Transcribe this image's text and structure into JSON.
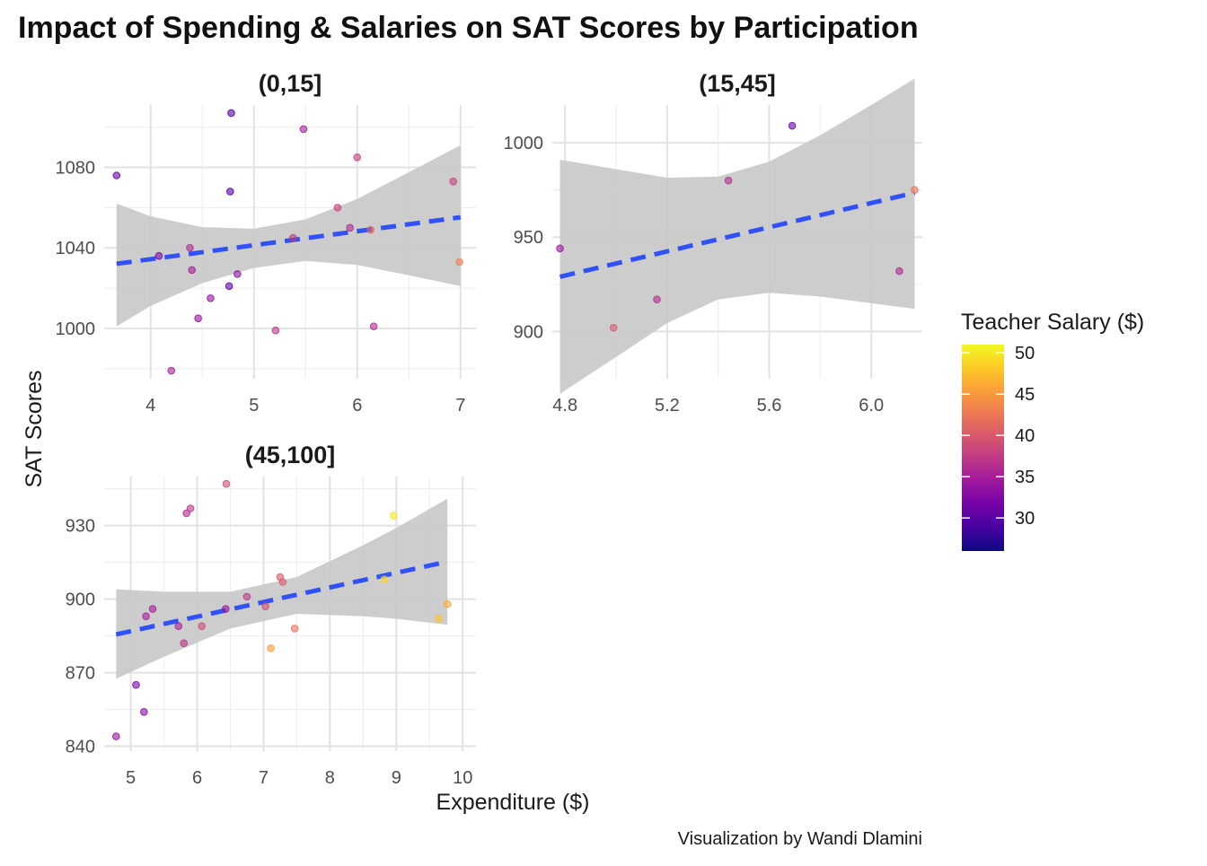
{
  "chart_data": {
    "type": "scatter",
    "title": "Impact of Spending & Salaries on SAT Scores by Participation",
    "xlabel": "Expenditure ($)",
    "ylabel": "SAT Scores",
    "caption": "Visualization by Wandi Dlamini",
    "legend": {
      "title": "Teacher Salary ($)",
      "position": "right",
      "ticks": [
        "30",
        "35",
        "40",
        "45",
        "50"
      ],
      "tick_values": [
        30,
        35,
        40,
        45,
        50
      ],
      "range": [
        26,
        51
      ],
      "colors": [
        "#0d0887",
        "#46039f",
        "#7201a8",
        "#9c179e",
        "#bd3786",
        "#d8576b",
        "#ed7953",
        "#fb9f3a",
        "#fdca26",
        "#f0f921"
      ]
    },
    "trend_color": "#3050f8",
    "band_color": "#c8c8c8",
    "grid": true,
    "panels": [
      {
        "label": "(0,15]",
        "xlim": [
          3.55,
          7.15
        ],
        "ylim": [
          975,
          1111
        ],
        "xticks": [
          4,
          5,
          6,
          7
        ],
        "xtick_labels": [
          "4",
          "5",
          "6",
          "7"
        ],
        "yticks": [
          1000,
          1040,
          1080
        ],
        "ytick_labels": [
          "1000",
          "1040",
          "1080"
        ],
        "trend": [
          [
            3.67,
            1032.1
          ],
          [
            7.0,
            1055.2
          ]
        ],
        "band_upper": [
          [
            3.67,
            1062
          ],
          [
            4.0,
            1055.7
          ],
          [
            4.5,
            1050.3
          ],
          [
            5.0,
            1049.5
          ],
          [
            5.5,
            1054.2
          ],
          [
            6.0,
            1064.3
          ],
          [
            6.5,
            1077.6
          ],
          [
            7.0,
            1091
          ]
        ],
        "band_lower": [
          [
            3.67,
            1001
          ],
          [
            4.0,
            1011.2
          ],
          [
            4.5,
            1022.5
          ],
          [
            5.0,
            1030
          ],
          [
            5.5,
            1033.5
          ],
          [
            6.0,
            1031.5
          ],
          [
            6.5,
            1026.4
          ],
          [
            7.0,
            1021
          ]
        ],
        "points": [
          {
            "x": 3.67,
            "y": 1076,
            "salary": 31
          },
          {
            "x": 4.08,
            "y": 1036,
            "salary": 32
          },
          {
            "x": 4.2,
            "y": 979,
            "salary": 35
          },
          {
            "x": 4.38,
            "y": 1040,
            "salary": 36
          },
          {
            "x": 4.4,
            "y": 1029,
            "salary": 35
          },
          {
            "x": 4.46,
            "y": 1005,
            "salary": 34
          },
          {
            "x": 4.58,
            "y": 1015,
            "salary": 34
          },
          {
            "x": 4.76,
            "y": 1021,
            "salary": 30
          },
          {
            "x": 4.77,
            "y": 1068,
            "salary": 30
          },
          {
            "x": 4.78,
            "y": 1107,
            "salary": 30
          },
          {
            "x": 4.84,
            "y": 1027,
            "salary": 33
          },
          {
            "x": 5.21,
            "y": 999,
            "salary": 37
          },
          {
            "x": 5.38,
            "y": 1045,
            "salary": 37
          },
          {
            "x": 5.48,
            "y": 1099,
            "salary": 35
          },
          {
            "x": 5.81,
            "y": 1060,
            "salary": 38
          },
          {
            "x": 5.93,
            "y": 1050,
            "salary": 36
          },
          {
            "x": 6.0,
            "y": 1085,
            "salary": 38
          },
          {
            "x": 6.13,
            "y": 1049,
            "salary": 41
          },
          {
            "x": 6.16,
            "y": 1001,
            "salary": 36
          },
          {
            "x": 6.93,
            "y": 1073,
            "salary": 38
          },
          {
            "x": 6.99,
            "y": 1033,
            "salary": 43
          }
        ]
      },
      {
        "label": "(15,45]",
        "xlim": [
          4.75,
          6.2
        ],
        "ylim": [
          875,
          1020
        ],
        "xticks": [
          4.8,
          5.2,
          5.6,
          6.0
        ],
        "xtick_labels": [
          "4.8",
          "5.2",
          "5.6",
          "6.0"
        ],
        "yticks": [
          900,
          950,
          1000
        ],
        "ytick_labels": [
          "900",
          "950",
          "1000"
        ],
        "trend": [
          [
            4.78,
            929
          ],
          [
            6.17,
            973.5
          ]
        ],
        "band_upper": [
          [
            4.78,
            991
          ],
          [
            5.0,
            986
          ],
          [
            5.2,
            981.5
          ],
          [
            5.4,
            982
          ],
          [
            5.6,
            990
          ],
          [
            5.8,
            1004
          ],
          [
            6.0,
            1020
          ],
          [
            6.17,
            1034
          ]
        ],
        "band_lower": [
          [
            4.78,
            867
          ],
          [
            5.0,
            886.5
          ],
          [
            5.2,
            904.5
          ],
          [
            5.4,
            917
          ],
          [
            5.6,
            920.5
          ],
          [
            5.8,
            918.5
          ],
          [
            6.0,
            915
          ],
          [
            6.17,
            912
          ]
        ],
        "points": [
          {
            "x": 4.78,
            "y": 944,
            "salary": 34
          },
          {
            "x": 4.99,
            "y": 902,
            "salary": 40
          },
          {
            "x": 5.16,
            "y": 917,
            "salary": 36
          },
          {
            "x": 5.44,
            "y": 980,
            "salary": 36
          },
          {
            "x": 5.69,
            "y": 1009,
            "salary": 31
          },
          {
            "x": 6.11,
            "y": 932,
            "salary": 36
          },
          {
            "x": 6.17,
            "y": 975,
            "salary": 42
          }
        ]
      },
      {
        "label": "(45,100]",
        "xlim": [
          4.6,
          10.2
        ],
        "ylim": [
          838,
          950
        ],
        "xticks": [
          5,
          6,
          7,
          8,
          9,
          10
        ],
        "xtick_labels": [
          "5",
          "6",
          "7",
          "8",
          "9",
          "10"
        ],
        "yticks": [
          840,
          870,
          900,
          930
        ],
        "ytick_labels": [
          "840",
          "870",
          "900",
          "930"
        ],
        "trend": [
          [
            4.78,
            885.6
          ],
          [
            9.77,
            915.3
          ]
        ],
        "band_upper": [
          [
            4.78,
            904
          ],
          [
            5.5,
            903
          ],
          [
            6.5,
            903
          ],
          [
            7.5,
            909
          ],
          [
            8.5,
            922
          ],
          [
            9.0,
            929
          ],
          [
            9.77,
            941
          ]
        ],
        "band_lower": [
          [
            4.78,
            867.5
          ],
          [
            5.5,
            876.5
          ],
          [
            6.5,
            888
          ],
          [
            7.5,
            894
          ],
          [
            8.5,
            893
          ],
          [
            9.0,
            892
          ],
          [
            9.77,
            889.5
          ]
        ],
        "points": [
          {
            "x": 4.78,
            "y": 844,
            "salary": 34
          },
          {
            "x": 5.08,
            "y": 865,
            "salary": 32
          },
          {
            "x": 5.2,
            "y": 854,
            "salary": 33
          },
          {
            "x": 5.23,
            "y": 893,
            "salary": 35
          },
          {
            "x": 5.33,
            "y": 896,
            "salary": 35
          },
          {
            "x": 5.72,
            "y": 889,
            "salary": 35
          },
          {
            "x": 5.8,
            "y": 882,
            "salary": 37
          },
          {
            "x": 5.84,
            "y": 935,
            "salary": 36
          },
          {
            "x": 5.9,
            "y": 937,
            "salary": 37
          },
          {
            "x": 6.07,
            "y": 889,
            "salary": 39
          },
          {
            "x": 6.43,
            "y": 896,
            "salary": 34
          },
          {
            "x": 6.44,
            "y": 947,
            "salary": 39
          },
          {
            "x": 6.75,
            "y": 901,
            "salary": 37
          },
          {
            "x": 7.03,
            "y": 897,
            "salary": 39
          },
          {
            "x": 7.11,
            "y": 880,
            "salary": 45
          },
          {
            "x": 7.25,
            "y": 909,
            "salary": 40
          },
          {
            "x": 7.29,
            "y": 907,
            "salary": 40
          },
          {
            "x": 7.47,
            "y": 888,
            "salary": 42
          },
          {
            "x": 8.82,
            "y": 908,
            "salary": 49
          },
          {
            "x": 8.96,
            "y": 934,
            "salary": 50
          },
          {
            "x": 9.64,
            "y": 892,
            "salary": 48
          },
          {
            "x": 9.77,
            "y": 898,
            "salary": 46
          }
        ]
      }
    ]
  }
}
